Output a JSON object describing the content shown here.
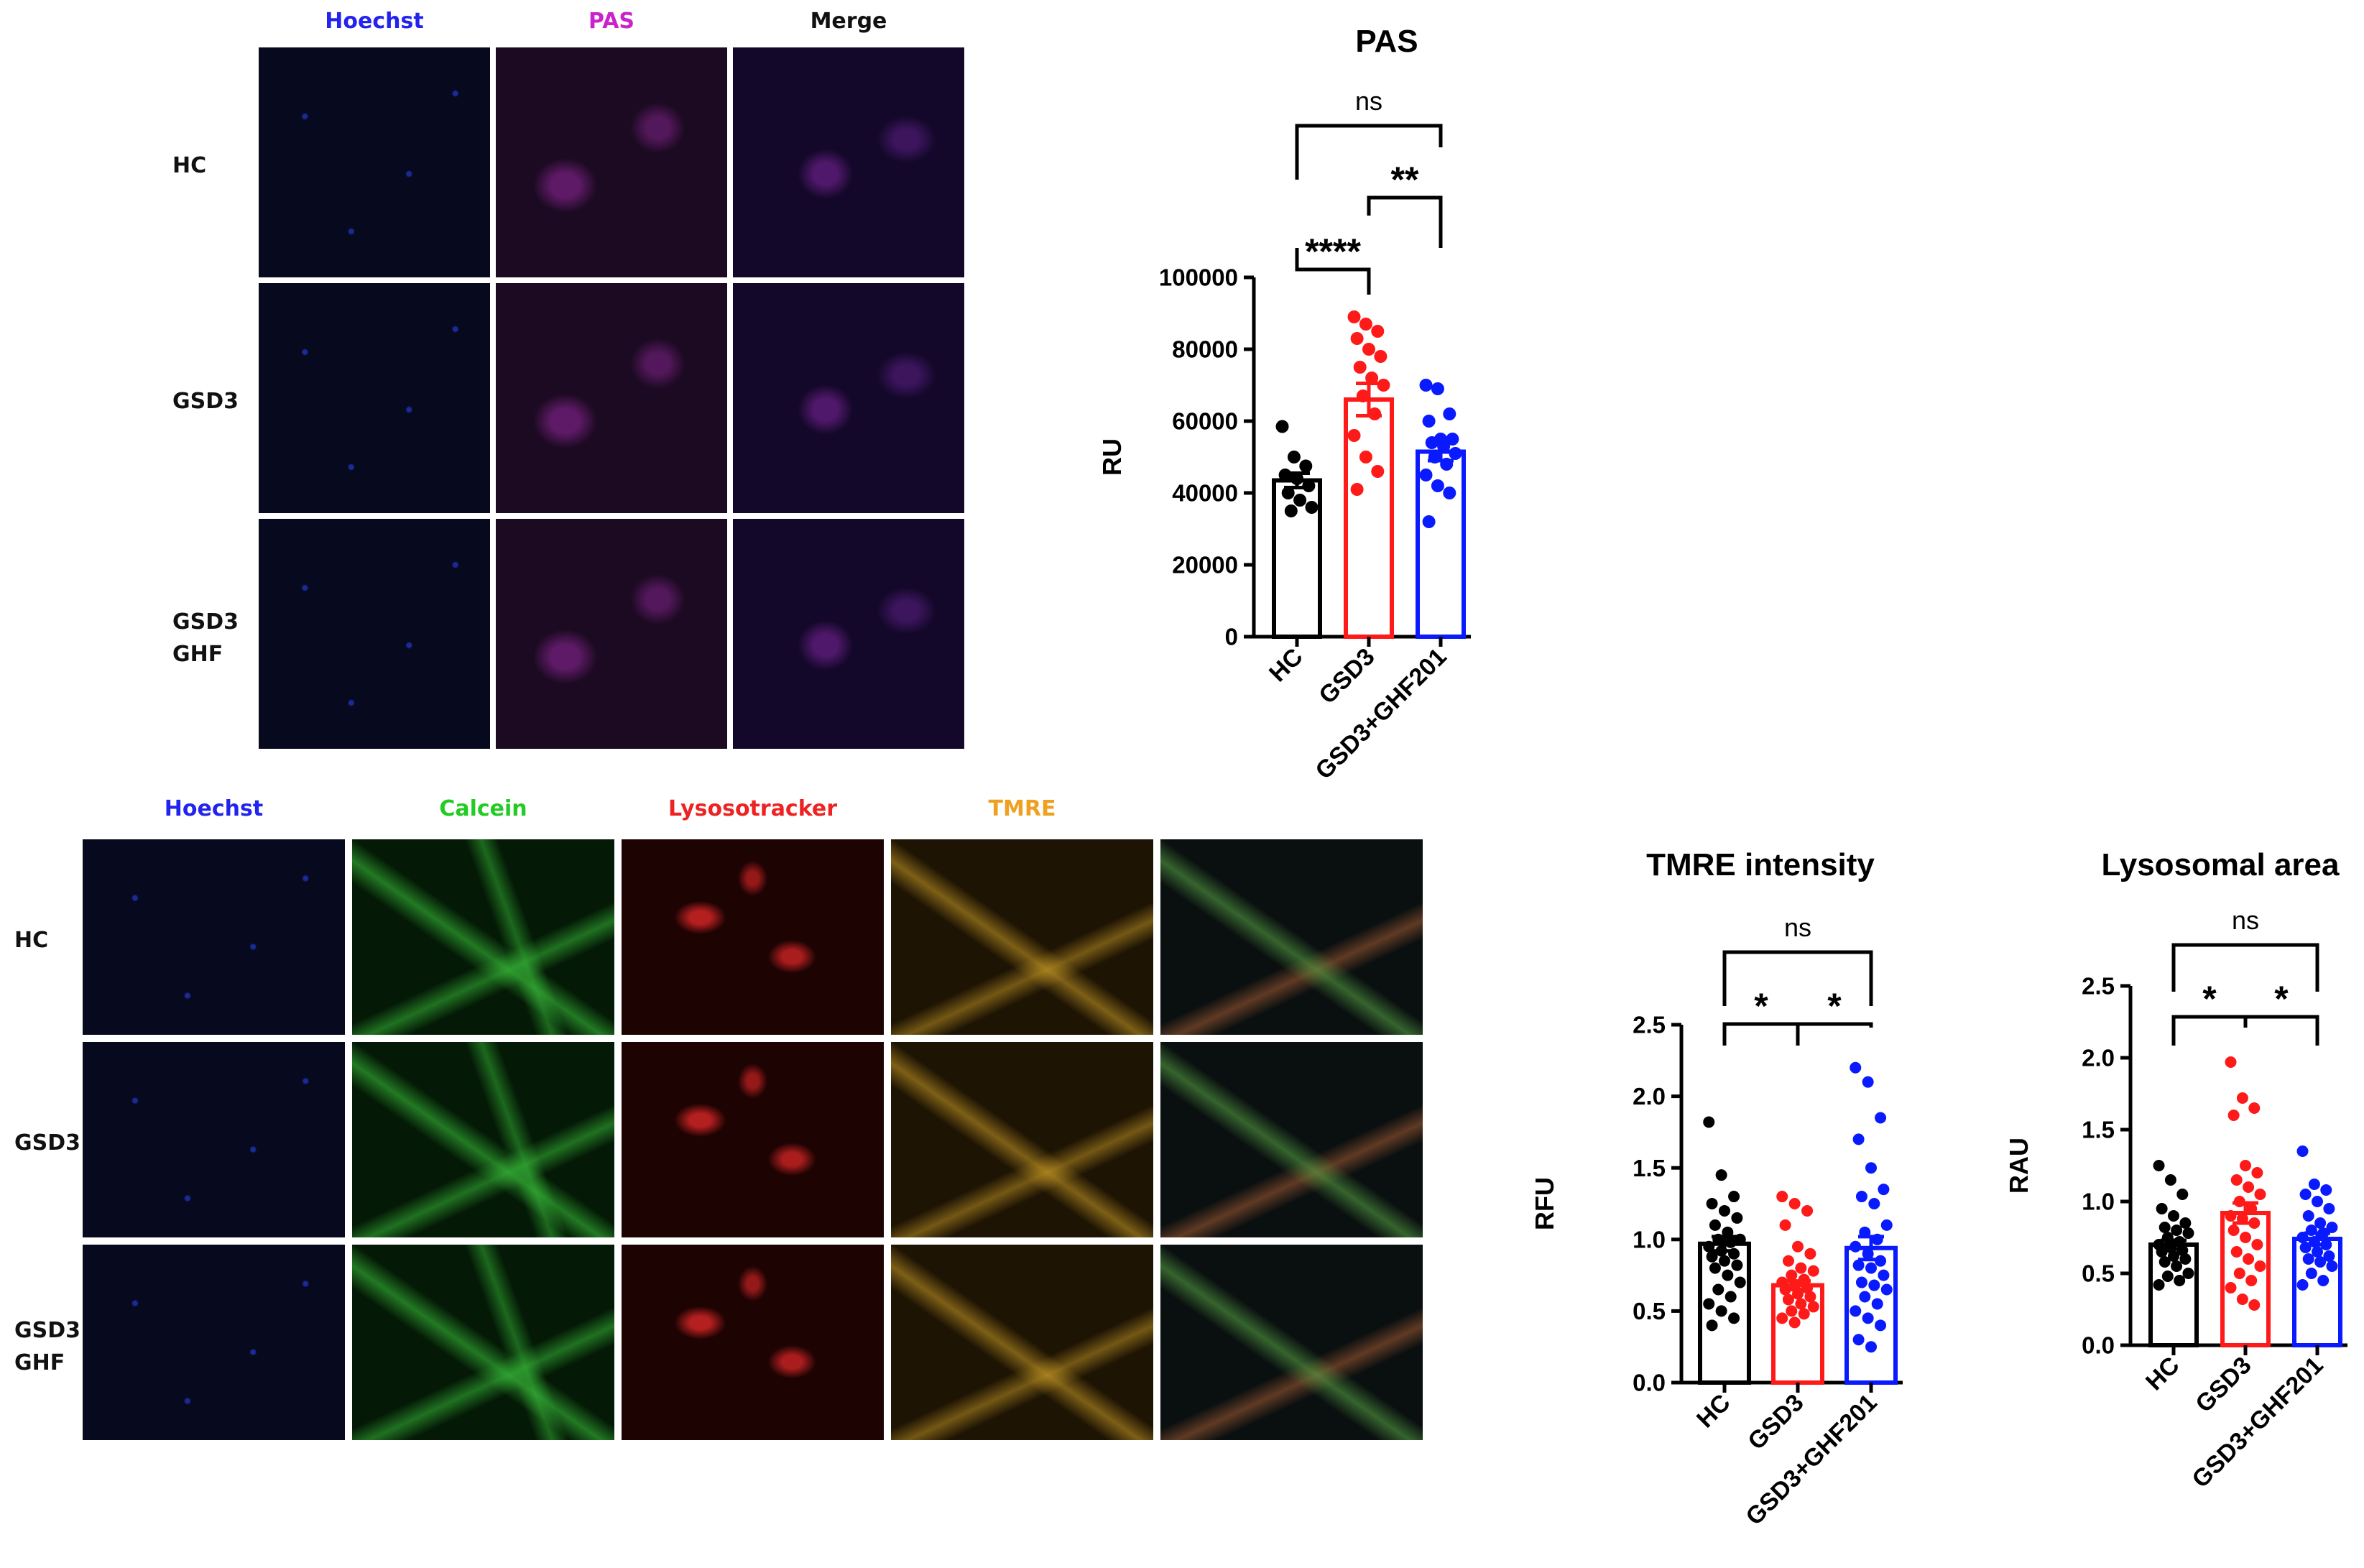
{
  "colors": {
    "HC": "#000000",
    "GSD3": "#ff1a1a",
    "GSD3+GHF201": "#0a1aff",
    "hoechst": "#2323ee",
    "pas": "#cc22cc",
    "calcein": "#22cc22",
    "lysotracker": "#ee2222",
    "tmre": "#f0a020"
  },
  "micrographs_top": {
    "columns": [
      {
        "label": "Hoechst",
        "color": "#2323ee",
        "stain": "hoechst"
      },
      {
        "label": "PAS",
        "color": "#cc22cc",
        "stain": "pas"
      },
      {
        "label": "Merge",
        "color": "#111111",
        "stain": "merge_pas"
      }
    ],
    "rows": [
      "HC",
      "GSD3",
      "GSD3\nGHF"
    ]
  },
  "micrographs_bottom": {
    "columns": [
      {
        "label": "Hoechst",
        "color": "#2323ee",
        "stain": "hoechst"
      },
      {
        "label": "Calcein",
        "color": "#22cc22",
        "stain": "calcein"
      },
      {
        "label": "Lysosotracker",
        "color": "#ee2222",
        "stain": "lyso"
      },
      {
        "label": "TMRE",
        "color": "#f0a020",
        "stain": "tmre"
      },
      {
        "label": "",
        "color": "#111111",
        "stain": "merge4"
      }
    ],
    "rows": [
      "HC",
      "GSD3",
      "GSD3\nGHF"
    ]
  },
  "chart_data": [
    {
      "type": "bar",
      "title": "PAS",
      "ylabel": "RU",
      "xlabel": "",
      "categories": [
        "HC",
        "GSD3",
        "GSD3+GHF201"
      ],
      "values": [
        43500,
        66000,
        51500
      ],
      "errors": [
        2000,
        4500,
        2500
      ],
      "ylim": [
        0,
        100000
      ],
      "yticks": [
        0,
        20000,
        40000,
        60000,
        80000,
        100000
      ],
      "ytick_labels": [
        "0",
        "20000",
        "40000",
        "60000",
        "80000",
        "100000"
      ],
      "points": [
        [
          58500,
          50000,
          47500,
          45000,
          44000,
          42000,
          40000,
          38000,
          36000,
          35000
        ],
        [
          89000,
          87000,
          85000,
          83000,
          80000,
          78000,
          75000,
          72000,
          70000,
          67000,
          62000,
          56000,
          50000,
          46000,
          41000
        ],
        [
          70000,
          69000,
          62000,
          60000,
          55000,
          55000,
          54000,
          53000,
          51000,
          50000,
          48000,
          45000,
          42000,
          40000,
          32000
        ]
      ],
      "significance": [
        {
          "from": 0,
          "to": 2,
          "label": "ns"
        },
        {
          "from": 1,
          "to": 2,
          "label": "**"
        },
        {
          "from": 0,
          "to": 1,
          "label": "****"
        }
      ]
    },
    {
      "type": "bar",
      "title": "TMRE intensity",
      "ylabel": "RFU",
      "xlabel": "",
      "categories": [
        "HC",
        "GSD3",
        "GSD3+GHF201"
      ],
      "values": [
        0.97,
        0.68,
        0.94
      ],
      "errors": [
        0.05,
        0.03,
        0.08
      ],
      "ylim": [
        0,
        2.5
      ],
      "yticks": [
        0,
        0.5,
        1.0,
        1.5,
        2.0,
        2.5
      ],
      "ytick_labels": [
        "0.0",
        "0.5",
        "1.0",
        "1.5",
        "2.0",
        "2.5"
      ],
      "points": [
        [
          1.82,
          1.45,
          1.3,
          1.25,
          1.2,
          1.15,
          1.1,
          1.05,
          1.0,
          1.0,
          0.98,
          0.95,
          0.92,
          0.9,
          0.88,
          0.85,
          0.82,
          0.8,
          0.75,
          0.7,
          0.65,
          0.6,
          0.55,
          0.5,
          0.45,
          0.4
        ],
        [
          1.3,
          1.25,
          1.2,
          1.1,
          0.95,
          0.9,
          0.85,
          0.8,
          0.78,
          0.75,
          0.72,
          0.7,
          0.68,
          0.66,
          0.65,
          0.62,
          0.6,
          0.58,
          0.55,
          0.53,
          0.5,
          0.48,
          0.45,
          0.42
        ],
        [
          2.2,
          2.1,
          1.85,
          1.7,
          1.5,
          1.35,
          1.3,
          1.25,
          1.1,
          1.05,
          1.0,
          0.95,
          0.9,
          0.85,
          0.82,
          0.8,
          0.75,
          0.7,
          0.68,
          0.65,
          0.6,
          0.55,
          0.5,
          0.45,
          0.4,
          0.3,
          0.25
        ]
      ],
      "significance": [
        {
          "from": 0,
          "to": 2,
          "label": "ns"
        },
        {
          "from": 0,
          "to": 1,
          "label": "*"
        },
        {
          "from": 1,
          "to": 2,
          "label": "*"
        }
      ]
    },
    {
      "type": "bar",
      "title": "Lysosomal area",
      "ylabel": "RAU",
      "xlabel": "",
      "categories": [
        "HC",
        "GSD3",
        "GSD3+GHF201"
      ],
      "values": [
        0.7,
        0.92,
        0.74
      ],
      "errors": [
        0.03,
        0.07,
        0.04
      ],
      "ylim": [
        0,
        2.5
      ],
      "yticks": [
        0,
        0.5,
        1.0,
        1.5,
        2.0,
        2.5
      ],
      "ytick_labels": [
        "0.0",
        "0.5",
        "1.0",
        "1.5",
        "2.0",
        "2.5"
      ],
      "points": [
        [
          1.25,
          1.15,
          1.05,
          0.95,
          0.9,
          0.85,
          0.82,
          0.8,
          0.78,
          0.75,
          0.72,
          0.7,
          0.68,
          0.66,
          0.65,
          0.62,
          0.6,
          0.58,
          0.55,
          0.5,
          0.48,
          0.45,
          0.42
        ],
        [
          1.97,
          1.72,
          1.65,
          1.6,
          1.25,
          1.2,
          1.15,
          1.1,
          1.05,
          1.0,
          0.95,
          0.9,
          0.88,
          0.85,
          0.8,
          0.75,
          0.7,
          0.65,
          0.6,
          0.55,
          0.5,
          0.45,
          0.4,
          0.32,
          0.28
        ],
        [
          1.35,
          1.12,
          1.08,
          1.05,
          1.0,
          0.95,
          0.9,
          0.85,
          0.82,
          0.8,
          0.78,
          0.75,
          0.72,
          0.7,
          0.68,
          0.65,
          0.62,
          0.6,
          0.58,
          0.55,
          0.5,
          0.45,
          0.42
        ]
      ],
      "significance": [
        {
          "from": 0,
          "to": 2,
          "label": "ns"
        },
        {
          "from": 0,
          "to": 1,
          "label": "*"
        },
        {
          "from": 1,
          "to": 2,
          "label": "*"
        }
      ]
    }
  ]
}
